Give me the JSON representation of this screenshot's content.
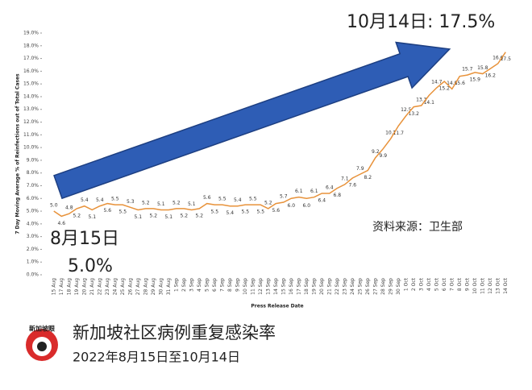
{
  "chart_data": {
    "type": "line",
    "y_label": "7 Day Moving Average % of Reinfections out of Total Cases",
    "x_label": "Press Release Date",
    "annotations": [
      "10月14日: 17.5%",
      "8月15日",
      "5.0%",
      "资料来源：卫生部"
    ],
    "title": "新加坡社区病例重复感染率",
    "subtitle": "2022年8月15日至10月14日",
    "logo": "新加坡眼",
    "color": "#e8923a",
    "categories": [
      "15 Aug",
      "17 Aug",
      "18 Aug",
      "19 Aug",
      "20 Aug",
      "21 Aug",
      "22 Aug",
      "23 Aug",
      "24 Aug",
      "25 Aug",
      "26 Aug",
      "27 Aug",
      "28 Aug",
      "29 Aug",
      "30 Aug",
      "31 Aug",
      "1 Sep",
      "2 Sep",
      "3 Sep",
      "4 Sep",
      "5 Sep",
      "6 Sep",
      "7 Sep",
      "8 Sep",
      "9 Sep",
      "10 Sep",
      "11 Sep",
      "12 Sep",
      "13 Sep",
      "14 Sep",
      "15 Sep",
      "16 Sep",
      "17 Sep",
      "18 Sep",
      "19 Sep",
      "20 Sep",
      "21 Sep",
      "22 Sep",
      "23 Sep",
      "24 Sep",
      "25 Sep",
      "26 Sep",
      "27 Sep",
      "28 Sep",
      "29 Sep",
      "30 Sep",
      "1 Oct",
      "2 Oct",
      "3 Oct",
      "4 Oct",
      "5 Oct",
      "6 Oct",
      "7 Oct",
      "8 Oct",
      "9 Oct",
      "10 Oct",
      "11 Oct",
      "12 Oct",
      "13 Oct",
      "14 Oct"
    ],
    "values": [
      5.0,
      4.6,
      4.8,
      5.2,
      5.4,
      5.1,
      5.4,
      5.6,
      5.5,
      5.5,
      5.3,
      5.1,
      5.2,
      5.2,
      5.1,
      5.1,
      5.2,
      5.2,
      5.1,
      5.2,
      5.6,
      5.5,
      5.5,
      5.4,
      5.4,
      5.5,
      5.5,
      5.5,
      5.2,
      5.6,
      5.7,
      6.0,
      6.1,
      6.0,
      6.1,
      6.4,
      6.4,
      6.8,
      7.1,
      7.6,
      7.9,
      8.2,
      9.2,
      9.9,
      10.7,
      11.7,
      12.5,
      13.2,
      13.3,
      14.1,
      14.7,
      15.2,
      14.6,
      15.6,
      15.7,
      15.9,
      15.8,
      16.2,
      16.6,
      17.5
    ],
    "value_labels": [
      "5.0",
      "4.6",
      "4.8",
      "5.2",
      "5.4",
      "5.1",
      "5.4",
      "5.6",
      "5.5",
      "5.5",
      "5.3",
      "5.1",
      "5.2",
      "5.2",
      "5.1",
      "5.1",
      "5.2",
      "5.2",
      "5.1",
      "5.2",
      "5.6",
      "5.5",
      "5.5",
      "5.4",
      "5.4",
      "5.5",
      "5.5",
      "5.5",
      "5.2",
      "5.6",
      "5.7",
      "6.0",
      "6.1",
      "6.0",
      "6.1",
      "6.4",
      "6.4",
      "6.8",
      "7.1",
      "7.6",
      "7.9",
      "8.2",
      "9.2",
      "9.9",
      "10.7",
      "11.7",
      "12.5",
      "13.2",
      "13.3",
      "14.1",
      "14.7",
      "15.2",
      "14.6",
      "15.6",
      "15.7",
      "15.9",
      "15.8",
      "16.2",
      "16.6",
      "17.5"
    ],
    "ylim": [
      0,
      19
    ],
    "yticks": [
      {
        "value": 0,
        "label": "0.0%"
      },
      {
        "value": 1,
        "label": "1.0%"
      },
      {
        "value": 2,
        "label": "2.0%"
      },
      {
        "value": 3,
        "label": "3.0%"
      },
      {
        "value": 4,
        "label": "4.0%"
      },
      {
        "value": 5,
        "label": "5.0%"
      },
      {
        "value": 6,
        "label": "6.0%"
      },
      {
        "value": 7,
        "label": "7.0%"
      },
      {
        "value": 8,
        "label": "8.0%"
      },
      {
        "value": 9,
        "label": "9.0%"
      },
      {
        "value": 10,
        "label": "10.0%"
      },
      {
        "value": 11,
        "label": "11.0%"
      },
      {
        "value": 12,
        "label": "12.0%"
      },
      {
        "value": 13,
        "label": "13.0%"
      },
      {
        "value": 14,
        "label": "14.0%"
      },
      {
        "value": 15,
        "label": "15.0%"
      },
      {
        "value": 16,
        "label": "16.0%"
      },
      {
        "value": 17,
        "label": "17.0%"
      },
      {
        "value": 18,
        "label": "18.0%"
      },
      {
        "value": 19,
        "label": "19.0%"
      }
    ],
    "grid": false
  }
}
